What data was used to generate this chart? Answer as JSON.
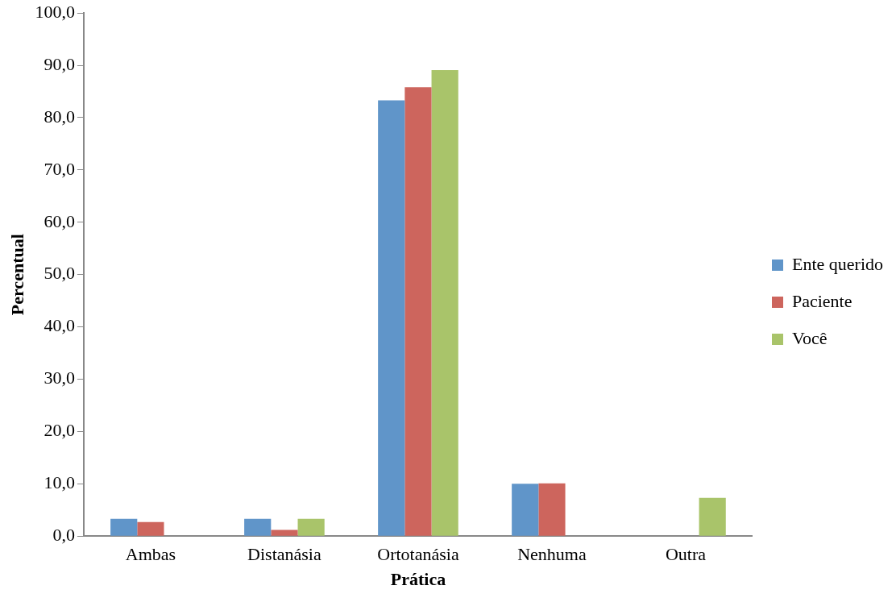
{
  "chart_data": {
    "type": "bar",
    "xlabel": "Prática",
    "ylabel": "Percentual",
    "categories": [
      "Ambas",
      "Distanásia",
      "Ortotanásia",
      "Nenhuma",
      "Outra"
    ],
    "series": [
      {
        "name": "Ente querido",
        "color": "#6095c9",
        "values": [
          3.3,
          3.3,
          83.3,
          10.0,
          null
        ]
      },
      {
        "name": "Paciente",
        "color": "#cd655d",
        "values": [
          2.7,
          1.2,
          85.8,
          10.1,
          null
        ]
      },
      {
        "name": "Você",
        "color": "#a9c46a",
        "values": [
          null,
          3.3,
          89.1,
          null,
          7.3
        ]
      }
    ],
    "ylim": [
      0,
      100
    ],
    "yticks": [
      {
        "value": 0,
        "label": "0,0"
      },
      {
        "value": 10,
        "label": "10,0"
      },
      {
        "value": 20,
        "label": "20,0"
      },
      {
        "value": 30,
        "label": "30,0"
      },
      {
        "value": 40,
        "label": "40,0"
      },
      {
        "value": 50,
        "label": "50,0"
      },
      {
        "value": 60,
        "label": "60,0"
      },
      {
        "value": 70,
        "label": "70,0"
      },
      {
        "value": 80,
        "label": "80,0"
      },
      {
        "value": 90,
        "label": "90,0"
      },
      {
        "value": 100,
        "label": "100,0"
      }
    ],
    "grid": false,
    "legend": "right"
  }
}
